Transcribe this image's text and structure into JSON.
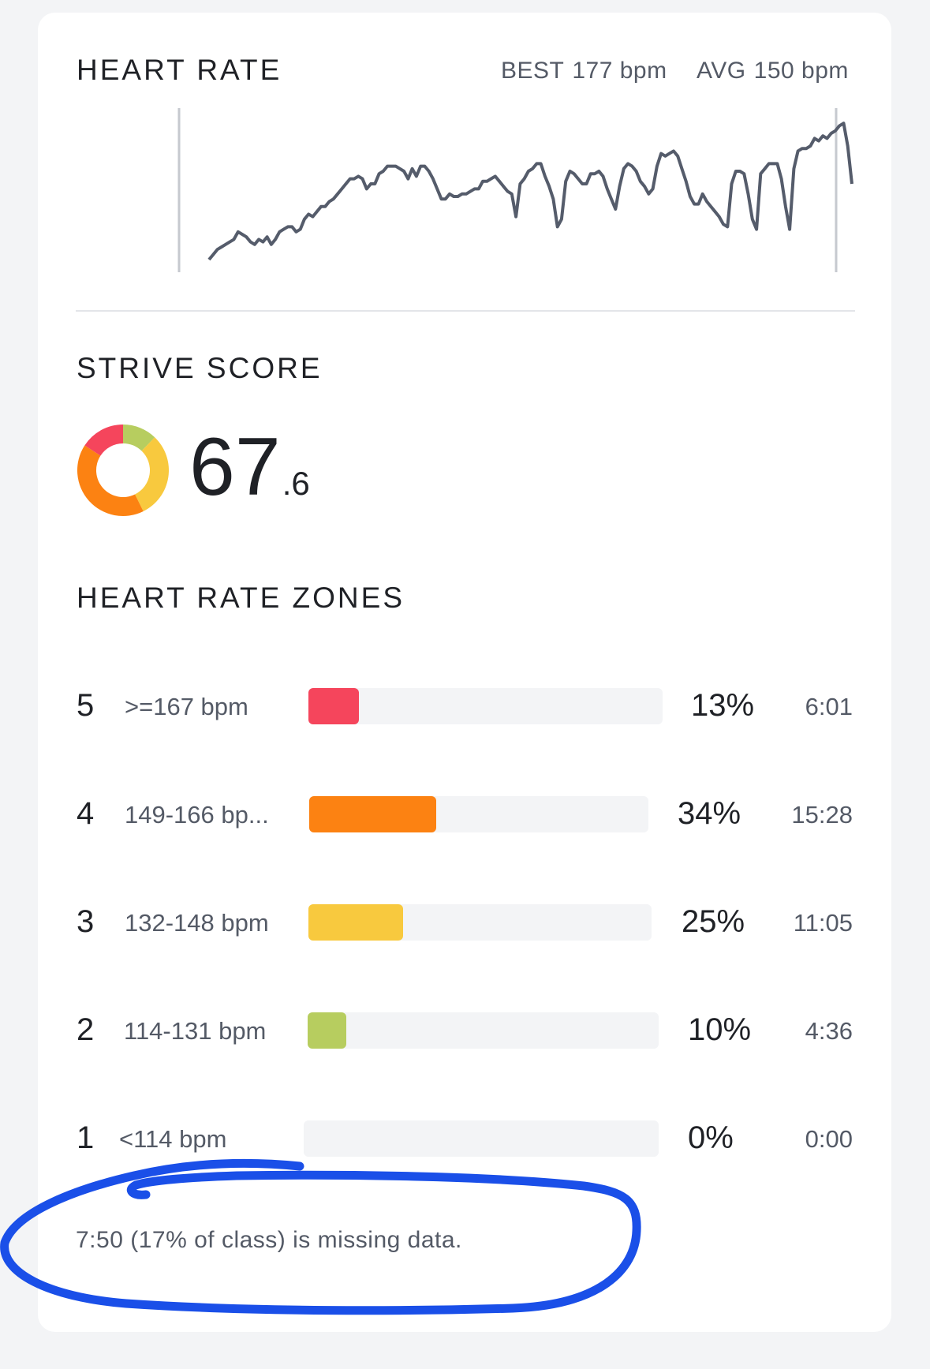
{
  "heart_rate": {
    "title": "HEART RATE",
    "best_label": "BEST",
    "best_value": "177 bpm",
    "avg_label": "AVG",
    "avg_value": "150 bpm",
    "line_color": "#555c6b",
    "chart_data": {
      "type": "line",
      "series": [
        {
          "values": [
            122,
            124,
            126,
            127,
            128,
            129,
            130,
            133,
            132,
            131,
            129,
            128,
            130,
            129,
            131,
            128,
            130,
            133,
            134,
            135,
            135,
            133,
            134,
            138,
            140,
            139,
            141,
            143,
            143,
            145,
            146,
            148,
            150,
            152,
            154,
            154,
            155,
            154,
            150,
            152,
            152,
            156,
            157,
            159,
            159,
            159,
            158,
            157,
            154,
            158,
            155,
            159,
            159,
            157,
            154,
            150,
            146,
            146,
            148,
            147,
            147,
            148,
            148,
            149,
            150,
            150,
            153,
            153,
            154,
            155,
            153,
            151,
            149,
            148,
            139,
            152,
            154,
            157,
            158,
            160,
            160,
            155,
            151,
            146,
            135,
            138,
            153,
            157,
            156,
            154,
            152,
            152,
            156,
            156,
            157,
            155,
            150,
            146,
            142,
            151,
            158,
            160,
            159,
            157,
            153,
            151,
            148,
            150,
            159,
            164,
            163,
            164,
            165,
            163,
            158,
            153,
            147,
            144,
            144,
            148,
            145,
            143,
            141,
            139,
            136,
            135,
            152,
            157,
            157,
            156,
            148,
            138,
            134,
            156,
            158,
            160,
            160,
            160,
            154,
            143,
            134,
            158,
            165,
            166,
            166,
            167,
            170,
            169,
            171,
            170,
            172,
            173,
            175,
            176,
            167,
            152
          ],
          "range": [
            117,
            182
          ]
        }
      ]
    }
  },
  "strive_score": {
    "title": "STRIVE SCORE",
    "value_main": "67",
    "value_decimal": ".6",
    "donut_segments": [
      {
        "zone": "5",
        "fraction": 0.13,
        "color": "#f5455c"
      },
      {
        "zone": "4",
        "fraction": 0.34,
        "color": "#fc8212"
      },
      {
        "zone": "3",
        "fraction": 0.25,
        "color": "#f8c93e"
      },
      {
        "zone": "2",
        "fraction": 0.1,
        "color": "#b7cd5f"
      }
    ]
  },
  "zones": {
    "title": "HEART RATE ZONES",
    "rows": [
      {
        "num": "5",
        "range": ">=167 bpm",
        "pct": "13%",
        "time": "6:01",
        "fill": 0.13,
        "color": "#f5455c"
      },
      {
        "num": "4",
        "range": "149-166 bp...",
        "pct": "34%",
        "time": "15:28",
        "fill": 0.34,
        "color": "#fc8212"
      },
      {
        "num": "3",
        "range": "132-148 bpm",
        "pct": "25%",
        "time": "11:05",
        "fill": 0.25,
        "color": "#f8c93e"
      },
      {
        "num": "2",
        "range": "114-131 bpm",
        "pct": "10%",
        "time": "4:36",
        "fill": 0.1,
        "color": "#b7cd5f"
      },
      {
        "num": "1",
        "range": "<114 bpm",
        "pct": "0%",
        "time": "0:00",
        "fill": 0.0,
        "color": "#c9ccd2"
      }
    ]
  },
  "missing_note": "7:50 (17% of class) is missing data.",
  "annotation_color": "#1a4fe8"
}
